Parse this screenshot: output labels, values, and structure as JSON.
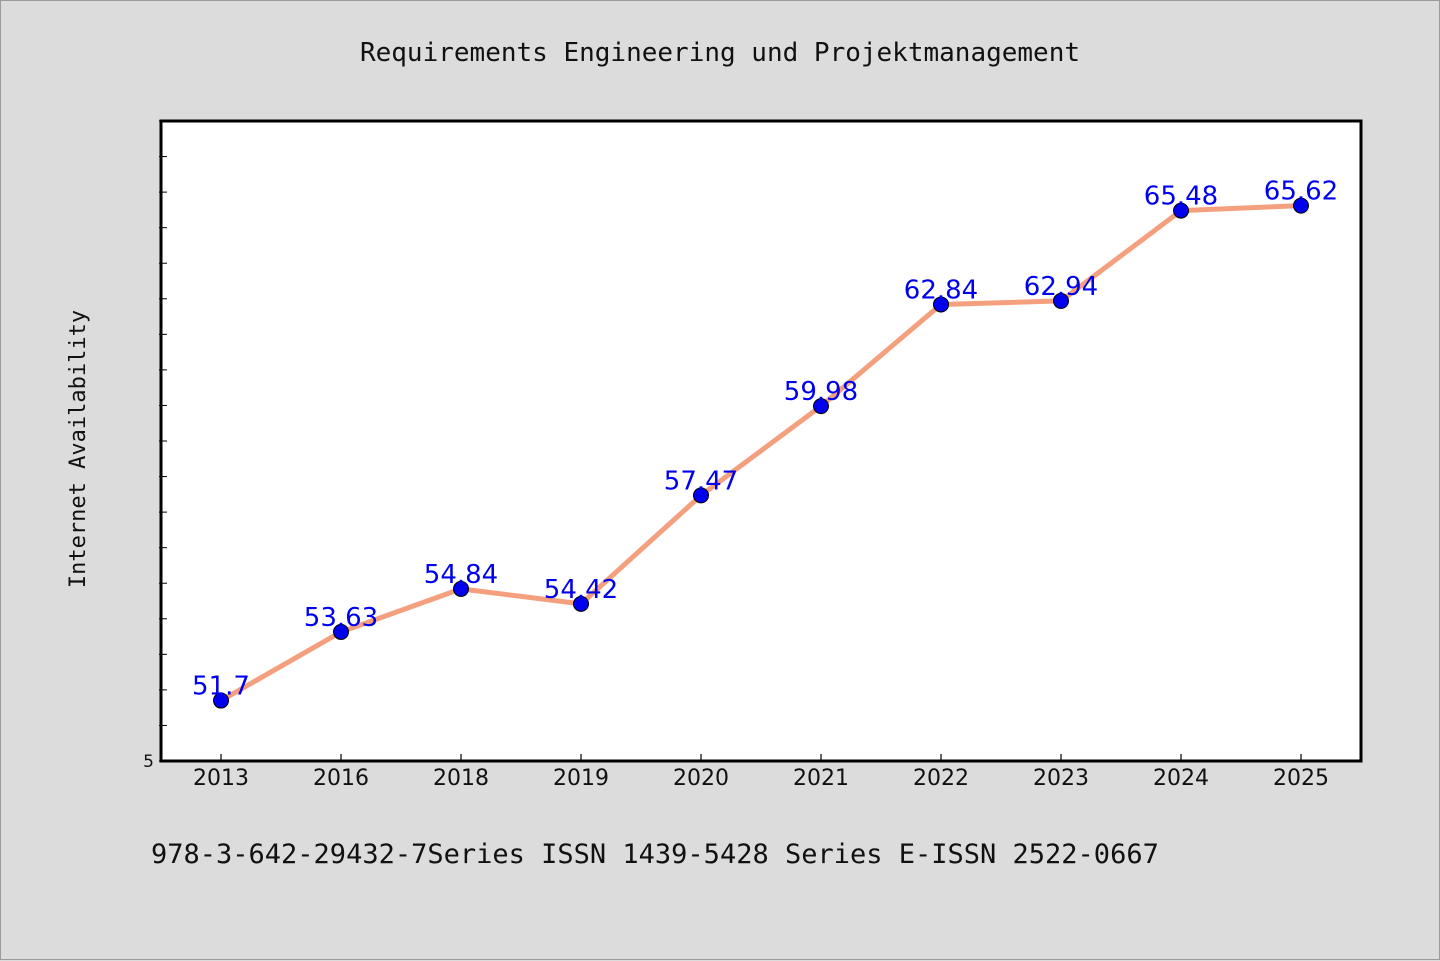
{
  "header": {
    "title": "Requirements Engineering und Projektmanagement"
  },
  "footer": {
    "text": "978-3-642-29432-7Series ISSN 1439-5428 Series E-ISSN 2522-0667"
  },
  "colors": {
    "background": "#dcdcdc",
    "plot_background": "#ffffff",
    "line": "#f4a07e",
    "marker": "#0000ee",
    "data_label": "#0000ee"
  },
  "chart_data": {
    "type": "line",
    "title": "Requirements Engineering und Projektmanagement",
    "xlabel": "",
    "ylabel": "Internet Availability",
    "categories": [
      "2013",
      "2016",
      "2018",
      "2019",
      "2020",
      "2021",
      "2022",
      "2023",
      "2024",
      "2025"
    ],
    "series": [
      {
        "values": [
          51.7,
          53.63,
          54.84,
          54.42,
          57.47,
          59.98,
          62.84,
          62.94,
          65.48,
          65.62
        ]
      }
    ],
    "data_labels": [
      "51.7",
      "53.63",
      "54.84",
      "54.42",
      "57.47",
      "59.98",
      "62.84",
      "62.94",
      "65.48",
      "65.62"
    ],
    "y_tick_labels": [
      "5"
    ],
    "ylim": [
      50.0,
      68.0
    ],
    "grid": false,
    "legend": "none"
  }
}
